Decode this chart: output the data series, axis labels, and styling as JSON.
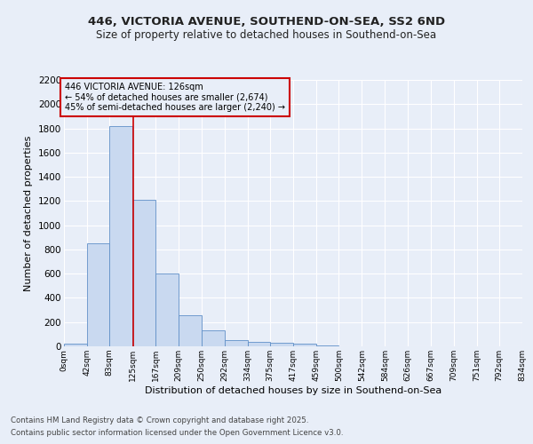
{
  "title1": "446, VICTORIA AVENUE, SOUTHEND-ON-SEA, SS2 6ND",
  "title2": "Size of property relative to detached houses in Southend-on-Sea",
  "xlabel": "Distribution of detached houses by size in Southend-on-Sea",
  "ylabel": "Number of detached properties",
  "footnote1": "Contains HM Land Registry data © Crown copyright and database right 2025.",
  "footnote2": "Contains public sector information licensed under the Open Government Licence v3.0.",
  "bar_edges": [
    0,
    42,
    83,
    125,
    167,
    209,
    250,
    292,
    334,
    375,
    417,
    459,
    500,
    542,
    584,
    626,
    667,
    709,
    751,
    792,
    834
  ],
  "bar_heights": [
    25,
    850,
    1820,
    1210,
    600,
    260,
    130,
    50,
    40,
    30,
    25,
    10,
    0,
    0,
    0,
    0,
    0,
    0,
    0,
    0
  ],
  "bar_color": "#c9d9f0",
  "bar_edge_color": "#6090c8",
  "property_size": 126,
  "vline_color": "#cc0000",
  "annotation_text": "446 VICTORIA AVENUE: 126sqm\n← 54% of detached houses are smaller (2,674)\n45% of semi-detached houses are larger (2,240) →",
  "annotation_box_color": "#cc0000",
  "bg_color": "#e8eef8",
  "grid_color": "#ffffff",
  "ylim": [
    0,
    2200
  ],
  "xlim": [
    0,
    834
  ],
  "tick_labels": [
    "0sqm",
    "42sqm",
    "83sqm",
    "125sqm",
    "167sqm",
    "209sqm",
    "250sqm",
    "292sqm",
    "334sqm",
    "375sqm",
    "417sqm",
    "459sqm",
    "500sqm",
    "542sqm",
    "584sqm",
    "626sqm",
    "667sqm",
    "709sqm",
    "751sqm",
    "792sqm",
    "834sqm"
  ]
}
